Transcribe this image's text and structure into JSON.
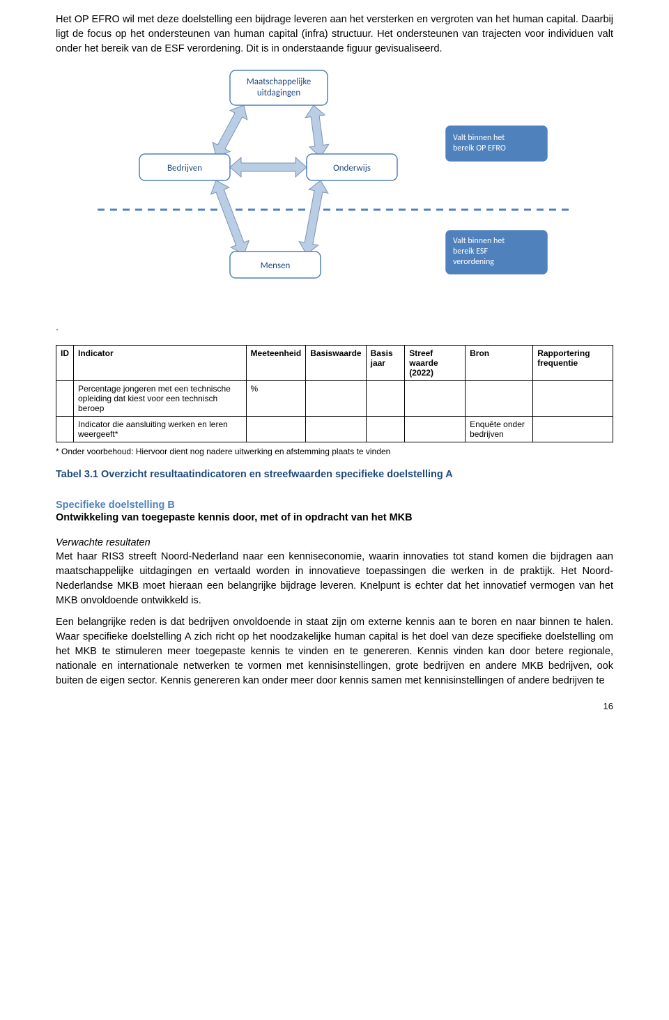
{
  "para1": "Het OP EFRO wil met deze doelstelling een bijdrage leveren aan het versterken en vergroten van het human capital. Daarbij ligt de focus op het ondersteunen van human capital (infra) structuur. Het ondersteunen van trajecten voor individuen valt onder het bereik van de ESF verordening. Dit is in onderstaande figuur gevisualiseerd.",
  "dot": ".",
  "diagram": {
    "nodes": {
      "maatschappelijke": "Maatschappelijke\nuitdagingen",
      "bedrijven": "Bedrijven",
      "onderwijs": "Onderwijs",
      "mensen": "Mensen",
      "efro": "Valt binnen het\nbereik OP EFRO",
      "esf": "Valt binnen het\nbereik  ESF\nverordening"
    },
    "colors": {
      "white_box_fill": "#ffffff",
      "white_box_stroke": "#4f81bd",
      "blue_box_fill": "#4f81bd",
      "blue_box_text": "#ffffff",
      "arrow_fill": "#b9cde5",
      "arrow_stroke": "#7c94b0",
      "dash_stroke": "#4f81bd",
      "node_text": "#1f497d",
      "node_fontsize": 13,
      "blue_fontsize": 12
    }
  },
  "table": {
    "headers": {
      "id": "ID",
      "indicator": "Indicator",
      "meeteenheid": "Meeteenheid",
      "basiswaarde": "Basiswaarde",
      "basisjaar": "Basis jaar",
      "streef": "Streef waarde (2022)",
      "bron": "Bron",
      "rapportering": "Rapportering frequentie"
    },
    "rows": [
      {
        "id": "",
        "indicator": "Percentage jongeren met een technische opleiding dat kiest voor een technisch beroep",
        "meeteenheid": "%",
        "basiswaarde": "",
        "basisjaar": "",
        "streef": "",
        "bron": "",
        "rapportering": ""
      },
      {
        "id": "",
        "indicator": "Indicator die aansluiting werken en leren weergeeft*",
        "meeteenheid": "",
        "basiswaarde": "",
        "basisjaar": "",
        "streef": "",
        "bron": "Enquête onder bedrijven",
        "rapportering": ""
      }
    ]
  },
  "footnote": "* Onder voorbehoud: Hiervoor dient nog nadere uitwerking en afstemming plaats te vinden",
  "caption": "Tabel 3.1 Overzicht resultaatindicatoren en streefwaarden specifieke doelstelling A",
  "caption_color": "#1f497d",
  "headingB": "Specifieke doelstelling B",
  "headingB_color": "#4f81bd",
  "subheadB": "Ontwikkeling van toegepaste kennis door, met of in opdracht van het MKB",
  "verwachte": "Verwachte resultaten",
  "para2": "Met haar RIS3 streeft Noord-Nederland naar een kenniseconomie, waarin innovaties tot stand komen die bijdragen aan maatschappelijke uitdagingen en vertaald worden in innovatieve toepassingen die werken in de praktijk. Het Noord-Nederlandse MKB moet hieraan een belangrijke bijdrage leveren. Knelpunt is echter dat het innovatief vermogen van het MKB onvoldoende ontwikkeld is.",
  "para3": "Een belangrijke reden is dat bedrijven onvoldoende in staat zijn om externe kennis aan te boren en naar binnen te halen. Waar specifieke doelstelling A zich richt op het noodzakelijke human capital is het doel van deze specifieke doelstelling om het MKB te stimuleren meer toegepaste kennis te vinden en te genereren. Kennis vinden kan door betere regionale, nationale en internationale netwerken te vormen met kennisinstellingen, grote bedrijven en andere MKB bedrijven, ook buiten de eigen sector. Kennis genereren kan onder meer door kennis samen met kennisinstellingen of andere bedrijven te",
  "pagenum": "16"
}
